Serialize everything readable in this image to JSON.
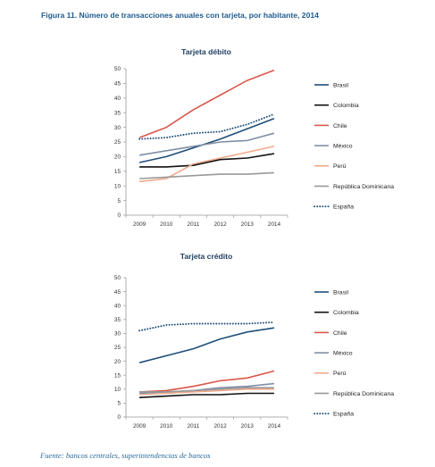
{
  "figure_title": "Figura 11. Número de transacciones anuales con tarjeta, por habitante, 2014",
  "source": "Fuente: bancos centrales, superintendencias de bancos",
  "chart_data": [
    {
      "type": "line",
      "title": "Tarjeta débito",
      "x": [
        "2009",
        "2010",
        "2011",
        "2012",
        "2013",
        "2014"
      ],
      "ylim": [
        0,
        50
      ],
      "yticks": [
        "0",
        "5",
        "10",
        "15",
        "20",
        "25",
        "30",
        "35",
        "40",
        "45",
        "50"
      ],
      "grid": false,
      "legend_position": "right",
      "series": [
        {
          "name": "Brasil",
          "color": "#1f4e79",
          "dashed": false,
          "values": [
            18,
            20,
            23,
            26,
            29.5,
            33
          ]
        },
        {
          "name": "Colombia",
          "color": "#111111",
          "dashed": false,
          "values": [
            16.5,
            16.5,
            17,
            19,
            19.5,
            21
          ]
        },
        {
          "name": "Chile",
          "color": "#d9574b",
          "dashed": false,
          "values": [
            26.5,
            30,
            36,
            41,
            46,
            49.5
          ]
        },
        {
          "name": "México",
          "color": "#7f8fa6",
          "dashed": false,
          "values": [
            20.5,
            22,
            23.5,
            25,
            25.5,
            28
          ]
        },
        {
          "name": "Perú",
          "color": "#f2a98b",
          "dashed": false,
          "values": [
            11.5,
            12.5,
            17.5,
            19.5,
            21.5,
            23.5
          ]
        },
        {
          "name": "República Dominicana",
          "color": "#999999",
          "dashed": false,
          "values": [
            12.5,
            13,
            13.5,
            14,
            14,
            14.5
          ]
        },
        {
          "name": "España",
          "color": "#1f4e79",
          "dashed": true,
          "values": [
            26,
            26.5,
            28,
            28.5,
            31,
            34.5
          ]
        }
      ]
    },
    {
      "type": "line",
      "title": "Tarjeta crédito",
      "x": [
        "2009",
        "2010",
        "2011",
        "2012",
        "2013",
        "2014"
      ],
      "ylim": [
        0,
        50
      ],
      "yticks": [
        "0",
        "5",
        "10",
        "15",
        "20",
        "25",
        "30",
        "35",
        "40",
        "45",
        "50"
      ],
      "grid": false,
      "legend_position": "right",
      "series": [
        {
          "name": "Brasil",
          "color": "#1f4e79",
          "dashed": false,
          "values": [
            19.5,
            22,
            24.5,
            28,
            30.5,
            32
          ]
        },
        {
          "name": "Colombia",
          "color": "#111111",
          "dashed": false,
          "values": [
            7,
            7.5,
            8,
            8,
            8.5,
            8.5
          ]
        },
        {
          "name": "Chile",
          "color": "#d9574b",
          "dashed": false,
          "values": [
            9,
            9.5,
            11,
            13,
            14,
            16.5
          ]
        },
        {
          "name": "México",
          "color": "#7f8fa6",
          "dashed": false,
          "values": [
            8.5,
            9,
            9.5,
            10.5,
            11,
            12
          ]
        },
        {
          "name": "Perú",
          "color": "#f2a98b",
          "dashed": false,
          "values": [
            8,
            8.5,
            9,
            9.5,
            10,
            10
          ]
        },
        {
          "name": "República Dominicana",
          "color": "#999999",
          "dashed": false,
          "values": [
            9,
            9,
            9.5,
            10,
            10.5,
            10.5
          ]
        },
        {
          "name": "España",
          "color": "#1f4e79",
          "dashed": true,
          "values": [
            31,
            33,
            33.5,
            33.5,
            33.5,
            34
          ]
        }
      ]
    }
  ]
}
